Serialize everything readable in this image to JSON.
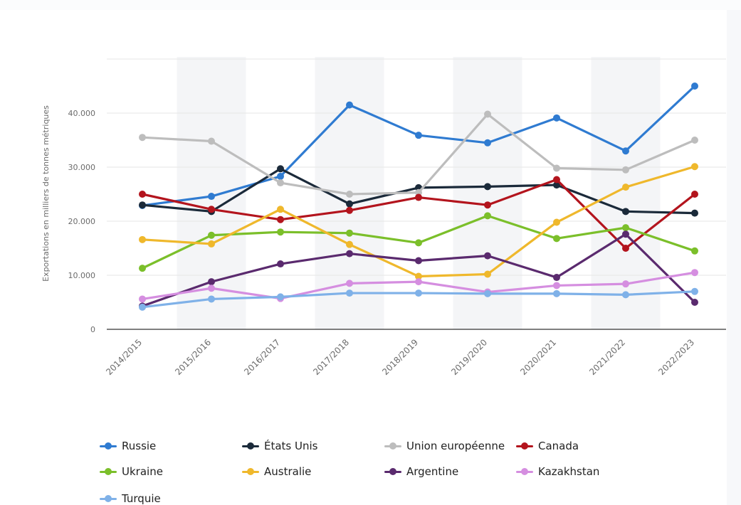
{
  "chart_data": {
    "type": "line",
    "title": "",
    "xlabel": "",
    "ylabel": "Exportations en milliers de tonnes métriques",
    "categories": [
      "2014/2015",
      "2015/2016",
      "2016/2017",
      "2017/2018",
      "2018/2019",
      "2019/2020",
      "2020/2021",
      "2021/2022",
      "2022/2023"
    ],
    "ylim": [
      0,
      50000
    ],
    "yticks": [
      0,
      10000,
      20000,
      30000,
      40000
    ],
    "ytick_labels": [
      "0",
      "10.000",
      "20.000",
      "30.000",
      "40.000"
    ],
    "grid": true,
    "legend_position": "bottom",
    "series": [
      {
        "name": "Russie",
        "color": "#2f7bd1",
        "values": [
          22900,
          24600,
          28300,
          41500,
          35900,
          34500,
          39100,
          33000,
          45000
        ]
      },
      {
        "name": "États Unis",
        "color": "#1b2a3a",
        "values": [
          23000,
          21800,
          29700,
          23200,
          26200,
          26400,
          26700,
          21800,
          21500
        ]
      },
      {
        "name": "Union européenne",
        "color": "#bdbdbd",
        "values": [
          35500,
          34800,
          27100,
          25000,
          25300,
          39800,
          29800,
          29500,
          35000
        ]
      },
      {
        "name": "Canada",
        "color": "#b3141d",
        "values": [
          25000,
          22200,
          20300,
          22000,
          24400,
          23000,
          27700,
          15000,
          25000
        ]
      },
      {
        "name": "Ukraine",
        "color": "#7bbf2a",
        "values": [
          11300,
          17400,
          18000,
          17800,
          16000,
          21000,
          16800,
          18800,
          14500
        ]
      },
      {
        "name": "Australie",
        "color": "#efb82c",
        "values": [
          16600,
          15800,
          22200,
          15700,
          9800,
          10200,
          19800,
          26300,
          30100
        ]
      },
      {
        "name": "Argentine",
        "color": "#5a2a6e",
        "values": [
          4300,
          8800,
          12100,
          14000,
          12700,
          13600,
          9600,
          17600,
          5000
        ]
      },
      {
        "name": "Kazakhstan",
        "color": "#d58ee0",
        "values": [
          5600,
          7600,
          5700,
          8500,
          8800,
          6900,
          8100,
          8400,
          10500
        ]
      },
      {
        "name": "Turquie",
        "color": "#7fb1e8",
        "values": [
          4100,
          5600,
          6000,
          6700,
          6700,
          6600,
          6600,
          6400,
          7000
        ]
      }
    ]
  }
}
